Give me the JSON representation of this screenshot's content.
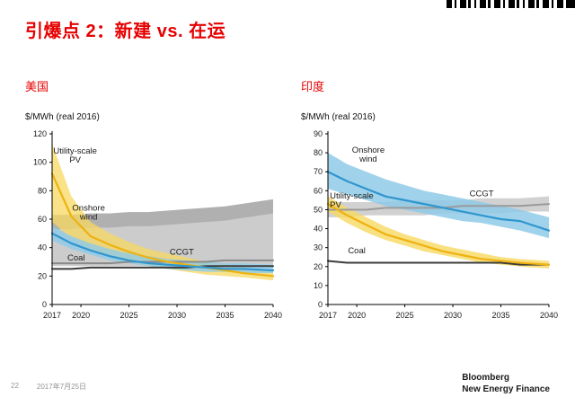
{
  "slide": {
    "title": "引爆点 2：新建 vs. 在运",
    "page_number": "22",
    "date": "2017年7月25日",
    "brand": {
      "line1": "Bloomberg",
      "line2": "New Energy Finance"
    }
  },
  "charts": [
    {
      "region": "美国",
      "unit_label": "$/MWh (real 2016)"
    },
    {
      "region": "印度",
      "unit_label": "$/MWh (real 2016)"
    }
  ],
  "colors": {
    "title_red": "#e60000",
    "pv_yellow_line": "#eeb211",
    "pv_yellow_band": "#f7d860",
    "wind_blue_line": "#2f96cf",
    "wind_blue_band": "#8fcae8",
    "ccgt_gray_line": "#8a8a8a",
    "ccgt_gray_band": "#c9c9c9",
    "coal_dark": "#3c3c3c"
  },
  "chart_data": [
    {
      "type": "line",
      "title": "美国",
      "ylabel": "$/MWh (real 2016)",
      "xlim": [
        2017,
        2040
      ],
      "ylim": [
        0,
        120
      ],
      "ytick_step": 20,
      "xticks": [
        2017,
        2020,
        2025,
        2030,
        2035,
        2040
      ],
      "x": [
        2017,
        2019,
        2021,
        2023,
        2025,
        2027,
        2029,
        2031,
        2033,
        2035,
        2037,
        2040
      ],
      "series": [
        {
          "name": "CCGT range",
          "kind": "band",
          "color": "#c9c9c9",
          "opacity": 0.95,
          "hi": [
            63,
            63,
            64,
            64,
            65,
            65,
            66,
            67,
            68,
            69,
            71,
            74
          ],
          "lo": [
            27,
            27,
            27,
            27,
            27,
            27,
            27,
            27,
            27,
            27,
            28,
            28
          ]
        },
        {
          "name": "CCGT range upper",
          "kind": "band",
          "color": "#adadad",
          "opacity": 0.9,
          "hi": [
            63,
            63,
            64,
            64,
            65,
            65,
            66,
            67,
            68,
            69,
            71,
            74
          ],
          "lo": [
            53,
            53,
            54,
            54,
            55,
            55,
            56,
            57,
            58,
            59,
            61,
            64
          ]
        },
        {
          "name": "Utility-scale PV range",
          "kind": "band",
          "color": "#f7d860",
          "opacity": 0.75,
          "hi": [
            113,
            76,
            58,
            50,
            44,
            39,
            36,
            33,
            30,
            28,
            26,
            24
          ],
          "lo": [
            58,
            47,
            39,
            34,
            30,
            27,
            25,
            23,
            21,
            20,
            19,
            17
          ]
        },
        {
          "name": "Onshore wind range",
          "kind": "band",
          "color": "#8fcae8",
          "opacity": 0.8,
          "hi": [
            55,
            48,
            43,
            39,
            36,
            34,
            32,
            31,
            30,
            29,
            29,
            28
          ],
          "lo": [
            45,
            39,
            35,
            31,
            29,
            27,
            25,
            24,
            23,
            23,
            22,
            22
          ]
        },
        {
          "name": "CCGT",
          "kind": "line",
          "color": "#8a8a8a",
          "width": 2,
          "values": [
            29,
            29,
            29,
            29,
            30,
            30,
            30,
            30,
            30,
            31,
            31,
            31
          ]
        },
        {
          "name": "Coal",
          "kind": "line",
          "color": "#3c3c3c",
          "width": 2,
          "values": [
            25,
            25,
            26,
            26,
            26,
            26,
            26,
            26,
            27,
            27,
            27,
            27
          ]
        },
        {
          "name": "Utility-scale PV",
          "kind": "line",
          "color": "#eeb211",
          "width": 2.2,
          "values": [
            92,
            62,
            48,
            42,
            37,
            33,
            30,
            28,
            26,
            24,
            22,
            20
          ]
        },
        {
          "name": "Onshore wind",
          "kind": "line",
          "color": "#2f96cf",
          "width": 2.2,
          "values": [
            50,
            43,
            38,
            34,
            31,
            29,
            28,
            27,
            26,
            25,
            25,
            24
          ]
        }
      ],
      "labels": [
        {
          "text": "Utility-scale\nPV",
          "x": 2019.4,
          "y": 106,
          "color": "#1a1a1a"
        },
        {
          "text": "Onshore\nwind",
          "x": 2020.8,
          "y": 66,
          "color": "#1a1a1a"
        },
        {
          "text": "Coal",
          "x": 2019.5,
          "y": 31,
          "color": "#1a1a1a"
        },
        {
          "text": "CCGT",
          "x": 2030.5,
          "y": 35,
          "color": "#1a1a1a"
        }
      ]
    },
    {
      "type": "line",
      "title": "印度",
      "ylabel": "$/MWh (real 2016)",
      "xlim": [
        2017,
        2040
      ],
      "ylim": [
        0,
        90
      ],
      "ytick_step": 10,
      "xticks": [
        2017,
        2020,
        2025,
        2030,
        2035,
        2040
      ],
      "x": [
        2017,
        2019,
        2021,
        2023,
        2025,
        2027,
        2029,
        2031,
        2033,
        2035,
        2037,
        2040
      ],
      "series": [
        {
          "name": "CCGT range",
          "kind": "band",
          "color": "#cfcfcf",
          "opacity": 0.95,
          "hi": [
            54,
            54,
            54,
            54,
            55,
            55,
            55,
            55,
            56,
            56,
            56,
            57
          ],
          "lo": [
            46,
            46,
            47,
            47,
            47,
            47,
            48,
            48,
            48,
            48,
            49,
            49
          ]
        },
        {
          "name": "Onshore wind range",
          "kind": "band",
          "color": "#8fcae8",
          "opacity": 0.85,
          "hi": [
            80,
            74,
            70,
            66,
            63,
            60,
            58,
            56,
            54,
            52,
            50,
            46
          ],
          "lo": [
            61,
            58,
            55,
            52,
            50,
            48,
            46,
            44,
            43,
            41,
            39,
            35
          ]
        },
        {
          "name": "Utility-scale PV range",
          "kind": "band",
          "color": "#f7d860",
          "opacity": 0.8,
          "hi": [
            57,
            51,
            46,
            41,
            37,
            34,
            31,
            29,
            27,
            25,
            24,
            23
          ],
          "lo": [
            49,
            43,
            38,
            34,
            31,
            28,
            26,
            24,
            22,
            21,
            20,
            19
          ]
        },
        {
          "name": "CCGT",
          "kind": "line",
          "color": "#9a9a9a",
          "width": 2,
          "values": [
            50,
            50,
            50,
            51,
            51,
            51,
            51,
            52,
            52,
            52,
            52,
            53
          ]
        },
        {
          "name": "Coal",
          "kind": "line",
          "color": "#3c3c3c",
          "width": 2,
          "values": [
            23,
            22,
            22,
            22,
            22,
            22,
            22,
            22,
            22,
            22,
            21,
            21
          ]
        },
        {
          "name": "Utility-scale PV",
          "kind": "line",
          "color": "#eeb211",
          "width": 2.2,
          "values": [
            53,
            47,
            42,
            37,
            34,
            31,
            28,
            26,
            24,
            23,
            22,
            21
          ]
        },
        {
          "name": "Onshore wind",
          "kind": "line",
          "color": "#2f96cf",
          "width": 2.2,
          "values": [
            70,
            65,
            61,
            57,
            55,
            53,
            51,
            49,
            47,
            45,
            44,
            39
          ]
        }
      ],
      "labels": [
        {
          "text": "Onshore\nwind",
          "x": 2021.2,
          "y": 80,
          "color": "#1a1a1a"
        },
        {
          "text": "Utility-scale\nPV",
          "x": 2017.2,
          "y": 56,
          "color": "#1a1a1a",
          "anchor": "start"
        },
        {
          "text": "CCGT",
          "x": 2033,
          "y": 57,
          "color": "#1a1a1a"
        },
        {
          "text": "Coal",
          "x": 2020,
          "y": 27,
          "color": "#1a1a1a"
        }
      ]
    }
  ]
}
